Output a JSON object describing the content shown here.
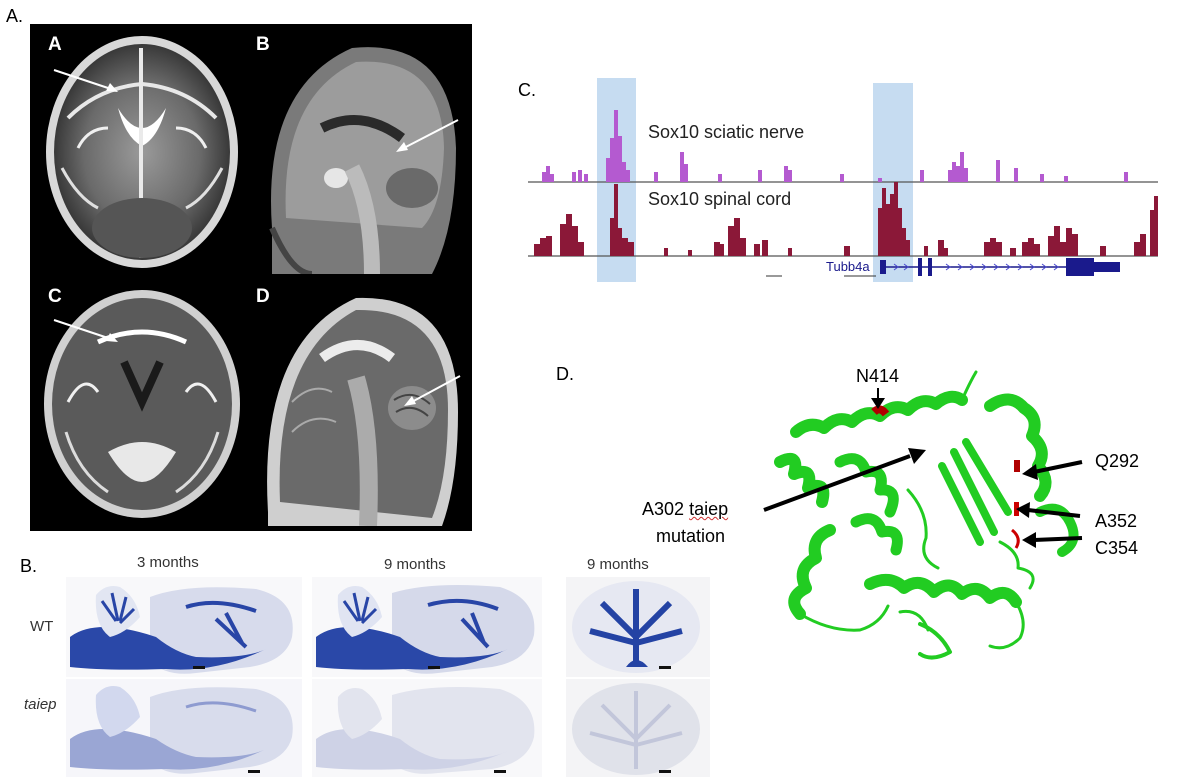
{
  "panels": {
    "a": {
      "label": "A.",
      "mri": [
        {
          "letter": "A",
          "view": "axial"
        },
        {
          "letter": "B",
          "view": "sagittal"
        },
        {
          "letter": "C",
          "view": "axial"
        },
        {
          "letter": "D",
          "view": "sagittal"
        }
      ]
    },
    "b": {
      "label": "B.",
      "columns": [
        "3 months",
        "9 months",
        "9 months"
      ],
      "rows": [
        "WT",
        "taiep"
      ]
    },
    "c": {
      "label": "C.",
      "tracks": [
        {
          "name": "Sox10 sciatic nerve",
          "color": "#b45ad0"
        },
        {
          "name": "Sox10 spinal cord",
          "color": "#8b1838"
        }
      ],
      "gene": "Tubb4a",
      "highlight_color": "#bcd6ee"
    },
    "d": {
      "label": "D.",
      "residues": {
        "n414": "N414",
        "q292": "Q292",
        "a352": "A352",
        "c354": "C354",
        "a302_line1": "A302",
        "a302_line1b": "taiep",
        "a302_line2": "mutation"
      },
      "protein_color": "#22cc22",
      "mutation_color": "#b00000"
    }
  }
}
